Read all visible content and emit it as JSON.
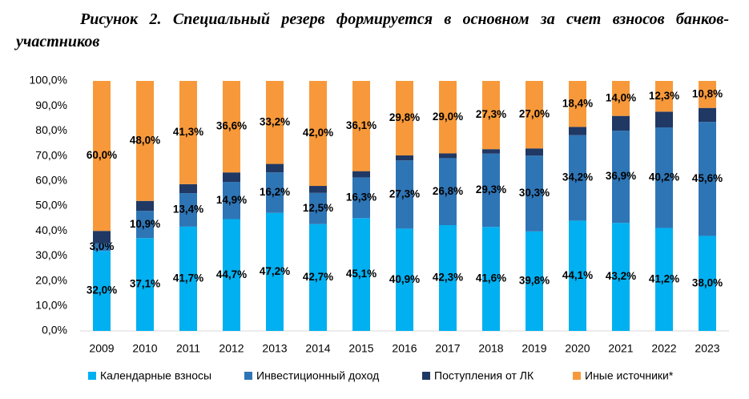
{
  "chart_data": {
    "type": "stacked_bar",
    "title": "Рисунок 2. Специальный резерв формируется в основном за счет взносов банков-участников",
    "categories": [
      "2009",
      "2010",
      "2011",
      "2012",
      "2013",
      "2014",
      "2015",
      "2016",
      "2017",
      "2018",
      "2019",
      "2020",
      "2021",
      "2022",
      "2023"
    ],
    "series": [
      {
        "name": "Календарные взносы",
        "color": "#00b0f0",
        "values": [
          32.0,
          37.1,
          41.7,
          44.7,
          47.2,
          42.7,
          45.1,
          40.9,
          42.3,
          41.6,
          39.8,
          44.1,
          43.2,
          41.2,
          38.0
        ],
        "value_labels": [
          "32,0%",
          "37,1%",
          "41,7%",
          "44,7%",
          "47,2%",
          "42,7%",
          "45,1%",
          "40,9%",
          "42,3%",
          "41,6%",
          "39,8%",
          "44,1%",
          "43,2%",
          "41,2%",
          "38,0%"
        ]
      },
      {
        "name": "Инвестиционный доход",
        "color": "#2e75b6",
        "values": [
          3.0,
          10.9,
          13.4,
          14.9,
          16.2,
          12.5,
          16.3,
          27.3,
          26.8,
          29.3,
          30.3,
          34.2,
          36.9,
          40.2,
          45.6
        ],
        "value_labels": [
          "3,0%",
          "10,9%",
          "13,4%",
          "14,9%",
          "16,2%",
          "12,5%",
          "16,3%",
          "27,3%",
          "26,8%",
          "29,3%",
          "30,3%",
          "34,2%",
          "36,9%",
          "40,2%",
          "45,6%"
        ]
      },
      {
        "name": "Поступления от ЛК",
        "color": "#203864",
        "values": [
          5.0,
          4.0,
          3.6,
          3.8,
          3.4,
          2.8,
          2.5,
          2.0,
          1.9,
          1.8,
          2.9,
          3.3,
          5.9,
          6.3,
          5.6
        ]
      },
      {
        "name": "Иные источники*",
        "color": "#f7993a",
        "values": [
          60.0,
          48.0,
          41.3,
          36.6,
          33.2,
          42.0,
          36.1,
          29.8,
          29.0,
          27.3,
          27.0,
          18.4,
          14.0,
          12.3,
          10.8
        ],
        "value_labels": [
          "60,0%",
          "48,0%",
          "41,3%",
          "36,6%",
          "33,2%",
          "42,0%",
          "36,1%",
          "29,8%",
          "29,0%",
          "27,3%",
          "27,0%",
          "18,4%",
          "14,0%",
          "12,3%",
          "10,8%"
        ]
      }
    ],
    "ylim": [
      0,
      100
    ],
    "yticks": [
      {
        "value": 0,
        "label": "0,0%"
      },
      {
        "value": 10,
        "label": "10,0%"
      },
      {
        "value": 20,
        "label": "20,0%"
      },
      {
        "value": 30,
        "label": "30,0%"
      },
      {
        "value": 40,
        "label": "40,0%"
      },
      {
        "value": 50,
        "label": "50,0%"
      },
      {
        "value": 60,
        "label": "60,0%"
      },
      {
        "value": 70,
        "label": "70,0%"
      },
      {
        "value": 80,
        "label": "80,0%"
      },
      {
        "value": 90,
        "label": "90,0%"
      },
      {
        "value": 100,
        "label": "100,0%"
      }
    ],
    "grid": false,
    "legend": "bottom"
  }
}
